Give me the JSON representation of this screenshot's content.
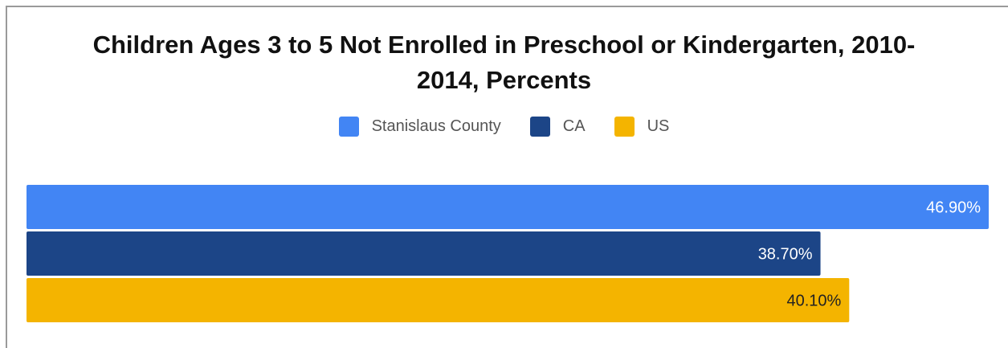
{
  "chart_data": {
    "type": "bar",
    "orientation": "horizontal",
    "title_lines": [
      "Children Ages 3 to 5 Not Enrolled in Preschool or Kindergarten, 2010-",
      "2014, Percents"
    ],
    "categories": [
      ""
    ],
    "series": [
      {
        "name": "Stanislaus County",
        "values": [
          46.9
        ],
        "label": "46.90%",
        "color": "#4285f4",
        "label_color": "#ffffff"
      },
      {
        "name": "CA",
        "values": [
          38.7
        ],
        "label": "38.70%",
        "color": "#1c4587",
        "label_color": "#ffffff"
      },
      {
        "name": "US",
        "values": [
          40.1
        ],
        "label": "40.10%",
        "color": "#f4b400",
        "label_color": "#222222"
      }
    ],
    "xlim": [
      0,
      46.9
    ],
    "grid": false,
    "legend_position": "top"
  }
}
